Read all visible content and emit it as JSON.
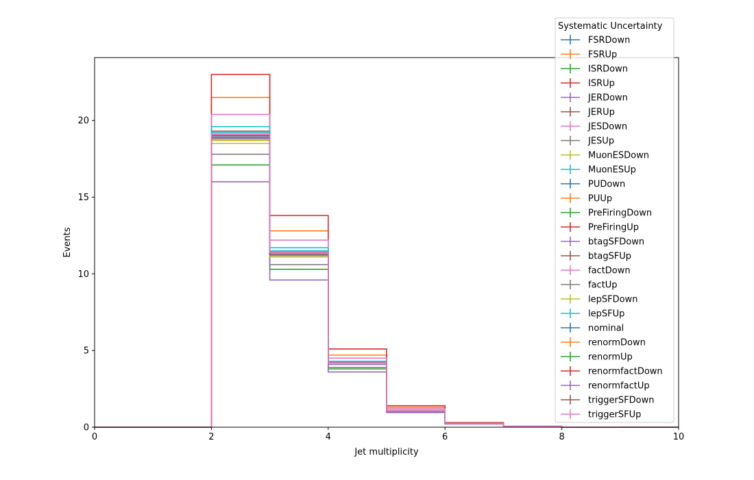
{
  "chart_data": {
    "type": "step-histogram",
    "title": "",
    "xlabel": "Jet multiplicity",
    "ylabel": "Events",
    "xlim": [
      0,
      10
    ],
    "ylim": [
      0,
      24.1
    ],
    "x_ticks": [
      "0",
      "2",
      "4",
      "6",
      "8",
      "10"
    ],
    "y_ticks": [
      "0",
      "5",
      "10",
      "15",
      "20"
    ],
    "bin_edges": [
      0,
      1,
      2,
      3,
      4,
      5,
      6,
      7,
      8,
      9,
      10
    ],
    "grid": false,
    "legend": {
      "title": "Systematic Uncertainty",
      "placement": "upper-right-outside-top"
    },
    "series": [
      {
        "name": "FSRDown",
        "color": "#1f77b4",
        "values": [
          0,
          0,
          19.0,
          11.3,
          4.3,
          1.1,
          0.25,
          0.05,
          0.01,
          0
        ]
      },
      {
        "name": "FSRUp",
        "color": "#ff7f0e",
        "values": [
          0,
          0,
          21.5,
          12.8,
          4.7,
          1.3,
          0.28,
          0.06,
          0.01,
          0
        ]
      },
      {
        "name": "ISRDown",
        "color": "#2ca02c",
        "values": [
          0,
          0,
          17.1,
          10.3,
          3.8,
          1.0,
          0.22,
          0.05,
          0.01,
          0
        ]
      },
      {
        "name": "ISRUp",
        "color": "#d62728",
        "values": [
          0,
          0,
          23.0,
          13.8,
          5.1,
          1.4,
          0.3,
          0.06,
          0.01,
          0
        ]
      },
      {
        "name": "JERDown",
        "color": "#9467bd",
        "values": [
          0,
          0,
          19.1,
          11.4,
          4.2,
          1.1,
          0.24,
          0.05,
          0.01,
          0
        ]
      },
      {
        "name": "JERUp",
        "color": "#8c564b",
        "values": [
          0,
          0,
          19.3,
          11.5,
          4.3,
          1.1,
          0.24,
          0.05,
          0.01,
          0
        ]
      },
      {
        "name": "JESDown",
        "color": "#e377c2",
        "values": [
          0,
          0,
          20.4,
          12.2,
          4.5,
          1.2,
          0.26,
          0.05,
          0.01,
          0
        ]
      },
      {
        "name": "JESUp",
        "color": "#7f7f7f",
        "values": [
          0,
          0,
          17.8,
          10.6,
          3.9,
          1.0,
          0.22,
          0.05,
          0.01,
          0
        ]
      },
      {
        "name": "MuonESDown",
        "color": "#bcbd22",
        "values": [
          0,
          0,
          18.5,
          11.1,
          4.1,
          1.1,
          0.23,
          0.05,
          0.01,
          0
        ]
      },
      {
        "name": "MuonESUp",
        "color": "#17becf",
        "values": [
          0,
          0,
          19.6,
          11.7,
          4.3,
          1.1,
          0.25,
          0.05,
          0.01,
          0
        ]
      },
      {
        "name": "PUDown",
        "color": "#1f77b4",
        "values": [
          0,
          0,
          19.0,
          11.4,
          4.2,
          1.1,
          0.24,
          0.05,
          0.01,
          0
        ]
      },
      {
        "name": "PUUp",
        "color": "#ff7f0e",
        "values": [
          0,
          0,
          18.9,
          11.2,
          4.2,
          1.1,
          0.24,
          0.05,
          0.01,
          0
        ]
      },
      {
        "name": "PreFiringDown",
        "color": "#2ca02c",
        "values": [
          0,
          0,
          19.0,
          11.3,
          4.2,
          1.1,
          0.24,
          0.05,
          0.01,
          0
        ]
      },
      {
        "name": "PreFiringUp",
        "color": "#d62728",
        "values": [
          0,
          0,
          18.9,
          11.3,
          4.2,
          1.1,
          0.24,
          0.05,
          0.01,
          0
        ]
      },
      {
        "name": "btagSFDown",
        "color": "#9467bd",
        "values": [
          0,
          0,
          16.0,
          9.6,
          3.6,
          0.95,
          0.21,
          0.04,
          0.01,
          0
        ]
      },
      {
        "name": "btagSFUp",
        "color": "#8c564b",
        "values": [
          0,
          0,
          19.2,
          11.5,
          4.2,
          1.1,
          0.24,
          0.05,
          0.01,
          0
        ]
      },
      {
        "name": "factDown",
        "color": "#e377c2",
        "values": [
          0,
          0,
          19.0,
          11.3,
          4.2,
          1.1,
          0.24,
          0.05,
          0.01,
          0
        ]
      },
      {
        "name": "factUp",
        "color": "#7f7f7f",
        "values": [
          0,
          0,
          18.8,
          11.2,
          4.1,
          1.1,
          0.24,
          0.05,
          0.01,
          0
        ]
      },
      {
        "name": "lepSFDown",
        "color": "#bcbd22",
        "values": [
          0,
          0,
          18.7,
          11.1,
          4.1,
          1.1,
          0.23,
          0.05,
          0.01,
          0
        ]
      },
      {
        "name": "lepSFUp",
        "color": "#17becf",
        "values": [
          0,
          0,
          19.2,
          11.5,
          4.3,
          1.1,
          0.24,
          0.05,
          0.01,
          0
        ]
      },
      {
        "name": "nominal",
        "color": "#1f77b4",
        "values": [
          0,
          0,
          19.0,
          11.3,
          4.2,
          1.1,
          0.24,
          0.05,
          0.01,
          0
        ]
      },
      {
        "name": "renormDown",
        "color": "#ff7f0e",
        "values": [
          0,
          0,
          19.1,
          11.4,
          4.2,
          1.1,
          0.24,
          0.05,
          0.01,
          0
        ]
      },
      {
        "name": "renormUp",
        "color": "#2ca02c",
        "values": [
          0,
          0,
          18.9,
          11.2,
          4.2,
          1.1,
          0.24,
          0.05,
          0.01,
          0
        ]
      },
      {
        "name": "renormfactDown",
        "color": "#d62728",
        "values": [
          0,
          0,
          19.1,
          11.4,
          4.2,
          1.1,
          0.24,
          0.05,
          0.01,
          0
        ]
      },
      {
        "name": "renormfactUp",
        "color": "#9467bd",
        "values": [
          0,
          0,
          18.8,
          11.2,
          4.1,
          1.1,
          0.23,
          0.05,
          0.01,
          0
        ]
      },
      {
        "name": "triggerSFDown",
        "color": "#8c564b",
        "values": [
          0,
          0,
          18.9,
          11.3,
          4.2,
          1.1,
          0.24,
          0.05,
          0.01,
          0
        ]
      },
      {
        "name": "triggerSFUp",
        "color": "#e377c2",
        "values": [
          0,
          0,
          19.1,
          11.4,
          4.2,
          1.1,
          0.24,
          0.05,
          0.01,
          0
        ]
      }
    ]
  }
}
